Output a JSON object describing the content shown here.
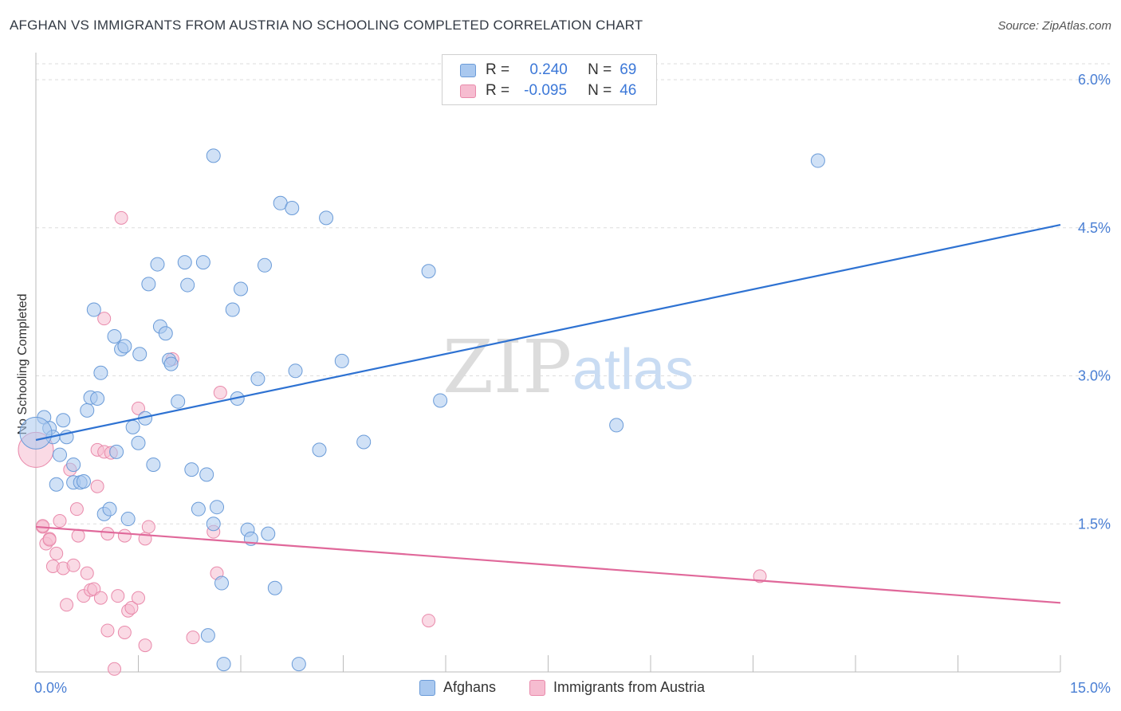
{
  "header": {
    "title": "AFGHAN VS IMMIGRANTS FROM AUSTRIA NO SCHOOLING COMPLETED CORRELATION CHART",
    "source": "Source: ZipAtlas.com"
  },
  "legend": {
    "rows": [
      {
        "r_label": "R =",
        "r_value": "0.240",
        "n_label": "N =",
        "n_value": "69"
      },
      {
        "r_label": "R =",
        "r_value": "-0.095",
        "n_label": "N =",
        "n_value": "46"
      }
    ],
    "bottom": [
      "Afghans",
      "Immigrants from Austria"
    ]
  },
  "watermark": {
    "zip": "ZIP",
    "atlas": "atlas"
  },
  "colors": {
    "blue_fill": "#a9c8ef",
    "blue_stroke": "#6a9bd8",
    "blue_line": "#2e72d2",
    "pink_fill": "#f6bcd0",
    "pink_stroke": "#e98aab",
    "pink_line": "#e0689a",
    "grid": "#dddddd",
    "axis_text": "#4a7fd4"
  },
  "chart_data": {
    "type": "scatter",
    "title": "AFGHAN VS IMMIGRANTS FROM AUSTRIA NO SCHOOLING COMPLETED CORRELATION CHART",
    "xlabel": "",
    "ylabel": "No Schooling Completed",
    "xlim": [
      0,
      15
    ],
    "ylim": [
      0,
      6
    ],
    "x_tick_labels": [
      "0.0%",
      "15.0%"
    ],
    "y_ticks": [
      1.5,
      3.0,
      4.5,
      6.0
    ],
    "y_tick_labels": [
      "1.5%",
      "3.0%",
      "4.5%",
      "6.0%"
    ],
    "legend_position": "top-center",
    "series": [
      {
        "name": "Afghans",
        "r": 0.24,
        "n": 69,
        "trend": {
          "x0": 0,
          "y0": 2.35,
          "x1": 15,
          "y1": 4.53
        },
        "points": [
          [
            0.12,
            2.58
          ],
          [
            0.2,
            2.47
          ],
          [
            0.25,
            2.38
          ],
          [
            0.35,
            2.2
          ],
          [
            0.4,
            2.55
          ],
          [
            0.45,
            2.38
          ],
          [
            0.3,
            1.9
          ],
          [
            0.55,
            1.92
          ],
          [
            0.55,
            2.1
          ],
          [
            0.65,
            1.92
          ],
          [
            0.7,
            1.93
          ],
          [
            0.75,
            2.65
          ],
          [
            0.8,
            2.78
          ],
          [
            0.85,
            3.67
          ],
          [
            0.9,
            2.77
          ],
          [
            0.95,
            3.03
          ],
          [
            1.0,
            1.6
          ],
          [
            1.08,
            1.65
          ],
          [
            1.15,
            3.4
          ],
          [
            1.18,
            2.23
          ],
          [
            1.25,
            3.27
          ],
          [
            1.3,
            3.3
          ],
          [
            1.35,
            1.55
          ],
          [
            1.42,
            2.48
          ],
          [
            1.5,
            2.32
          ],
          [
            1.52,
            3.22
          ],
          [
            1.6,
            2.57
          ],
          [
            1.65,
            3.93
          ],
          [
            1.72,
            2.1
          ],
          [
            1.78,
            4.13
          ],
          [
            1.82,
            3.5
          ],
          [
            1.9,
            3.43
          ],
          [
            1.95,
            3.16
          ],
          [
            1.98,
            3.12
          ],
          [
            2.08,
            2.74
          ],
          [
            2.18,
            4.15
          ],
          [
            2.22,
            3.92
          ],
          [
            2.28,
            2.05
          ],
          [
            2.38,
            1.65
          ],
          [
            2.45,
            4.15
          ],
          [
            2.5,
            2.0
          ],
          [
            2.52,
            0.37
          ],
          [
            2.6,
            1.5
          ],
          [
            2.6,
            5.23
          ],
          [
            2.65,
            1.67
          ],
          [
            2.72,
            0.9
          ],
          [
            2.75,
            0.08
          ],
          [
            2.88,
            3.67
          ],
          [
            2.95,
            2.77
          ],
          [
            3.0,
            3.88
          ],
          [
            3.1,
            1.44
          ],
          [
            3.15,
            1.35
          ],
          [
            3.25,
            2.97
          ],
          [
            3.35,
            4.12
          ],
          [
            3.4,
            1.4
          ],
          [
            3.5,
            0.85
          ],
          [
            3.58,
            4.75
          ],
          [
            3.75,
            4.7
          ],
          [
            3.8,
            3.05
          ],
          [
            3.85,
            0.08
          ],
          [
            4.15,
            2.25
          ],
          [
            4.25,
            4.6
          ],
          [
            4.48,
            3.15
          ],
          [
            4.8,
            2.33
          ],
          [
            5.75,
            4.06
          ],
          [
            5.92,
            2.75
          ],
          [
            8.5,
            2.5
          ],
          [
            11.45,
            5.18
          ],
          [
            0.0,
            2.42
          ]
        ]
      },
      {
        "name": "Immigrants from Austria",
        "r": -0.095,
        "n": 46,
        "trend": {
          "x0": 0,
          "y0": 1.47,
          "x1": 15,
          "y1": 0.7
        },
        "points": [
          [
            0.0,
            2.25
          ],
          [
            0.1,
            1.47
          ],
          [
            0.15,
            1.3
          ],
          [
            0.2,
            1.35
          ],
          [
            0.25,
            1.07
          ],
          [
            0.3,
            1.2
          ],
          [
            0.35,
            1.53
          ],
          [
            0.4,
            1.05
          ],
          [
            0.45,
            0.68
          ],
          [
            0.5,
            2.05
          ],
          [
            0.55,
            1.08
          ],
          [
            0.6,
            1.65
          ],
          [
            0.62,
            1.38
          ],
          [
            0.7,
            0.77
          ],
          [
            0.75,
            1.0
          ],
          [
            0.8,
            0.83
          ],
          [
            0.85,
            0.84
          ],
          [
            0.9,
            1.88
          ],
          [
            0.9,
            2.25
          ],
          [
            0.95,
            0.75
          ],
          [
            1.0,
            2.23
          ],
          [
            1.0,
            3.58
          ],
          [
            1.05,
            1.4
          ],
          [
            1.05,
            0.42
          ],
          [
            1.1,
            2.22
          ],
          [
            1.15,
            0.03
          ],
          [
            1.2,
            0.77
          ],
          [
            1.25,
            4.6
          ],
          [
            1.3,
            0.4
          ],
          [
            1.3,
            1.38
          ],
          [
            1.35,
            0.62
          ],
          [
            1.4,
            0.65
          ],
          [
            1.5,
            0.75
          ],
          [
            1.5,
            2.67
          ],
          [
            1.6,
            1.35
          ],
          [
            1.6,
            0.27
          ],
          [
            1.65,
            1.47
          ],
          [
            2.0,
            3.17
          ],
          [
            2.3,
            0.35
          ],
          [
            2.6,
            1.42
          ],
          [
            2.65,
            1.0
          ],
          [
            2.7,
            2.83
          ],
          [
            5.75,
            0.52
          ],
          [
            10.6,
            0.97
          ],
          [
            0.1,
            1.48
          ],
          [
            0.2,
            1.34
          ]
        ]
      }
    ]
  }
}
